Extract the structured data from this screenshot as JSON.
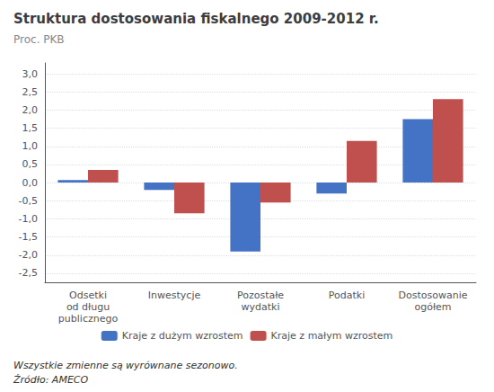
{
  "chart_data": {
    "type": "bar",
    "title": "Struktura dostosowania fiskalnego 2009-2012 r.",
    "subtitle": "Proc. PKB",
    "categories": [
      "Odsetki\nod długu\npublicznego",
      "Inwestycje",
      "Pozostałe\nwydatki",
      "Podatki",
      "Dostosowanie\nogółem"
    ],
    "series": [
      {
        "name": "Kraje z dużym wzrostem",
        "color": "#4472c4",
        "values": [
          0.07,
          -0.2,
          -1.9,
          -0.3,
          1.75
        ]
      },
      {
        "name": "Kraje z małym wzrostem",
        "color": "#c0504d",
        "values": [
          0.35,
          -0.85,
          -0.55,
          1.15,
          2.3
        ]
      }
    ],
    "ylim": [
      -2.75,
      3.3
    ],
    "yticks": [
      {
        "value": -2.5,
        "label": "-2,5"
      },
      {
        "value": -2.0,
        "label": "-2,0"
      },
      {
        "value": -1.5,
        "label": "-1,5"
      },
      {
        "value": -1.0,
        "label": "-1,0"
      },
      {
        "value": -0.5,
        "label": "-0,5"
      },
      {
        "value": 0.0,
        "label": "0,0"
      },
      {
        "value": 0.5,
        "label": "0,5"
      },
      {
        "value": 1.0,
        "label": "1,0"
      },
      {
        "value": 1.5,
        "label": "1,5"
      },
      {
        "value": 2.0,
        "label": "2,0"
      },
      {
        "value": 2.5,
        "label": "2,5"
      },
      {
        "value": 3.0,
        "label": "3,0"
      }
    ],
    "grid": true,
    "legend": "bottom",
    "annotations": [
      "Wszystkie zmienne są wyrównane sezonowo.",
      "Źródło: AMECO"
    ]
  }
}
